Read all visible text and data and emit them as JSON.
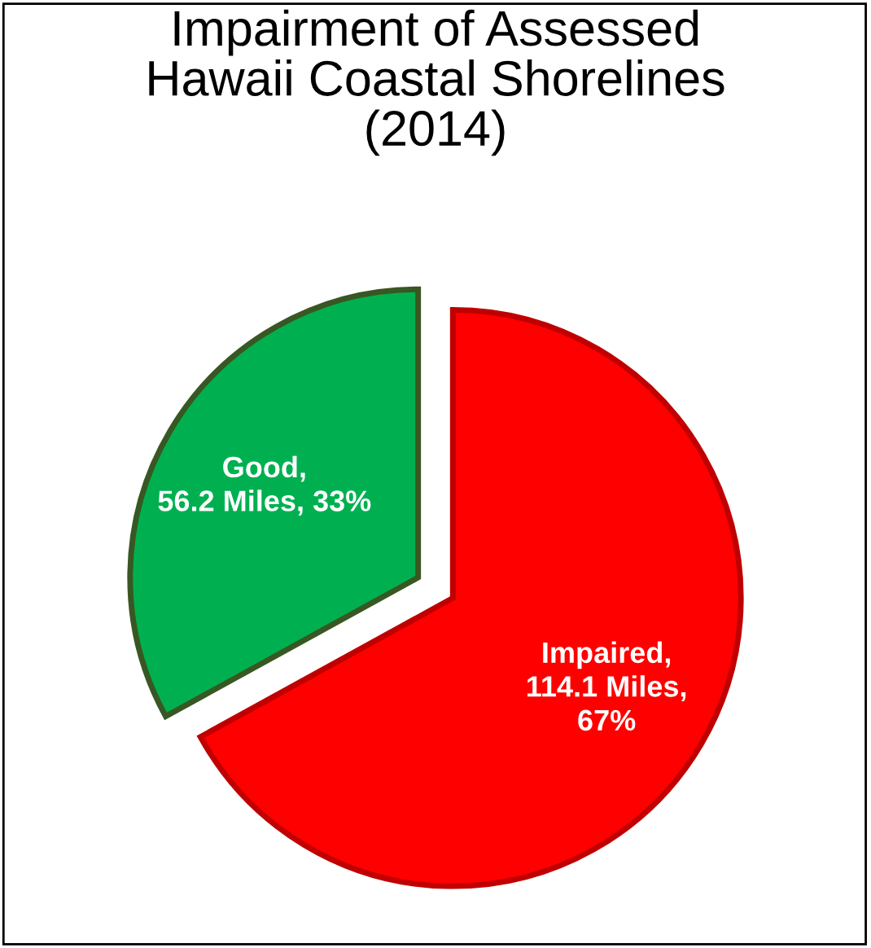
{
  "chart_data": {
    "type": "pie",
    "title": "Impairment of Assessed\nHawaii Coastal Shorelines\n(2014)",
    "categories": [
      "Impaired",
      "Good"
    ],
    "values": [
      114.1,
      56.2
    ],
    "value_labels": [
      ",\n114.1 Miles,\n67%",
      ",\n56.2 Miles, 33%"
    ],
    "colors": [
      "#ff0000",
      "#00b050"
    ],
    "legend": false
  }
}
